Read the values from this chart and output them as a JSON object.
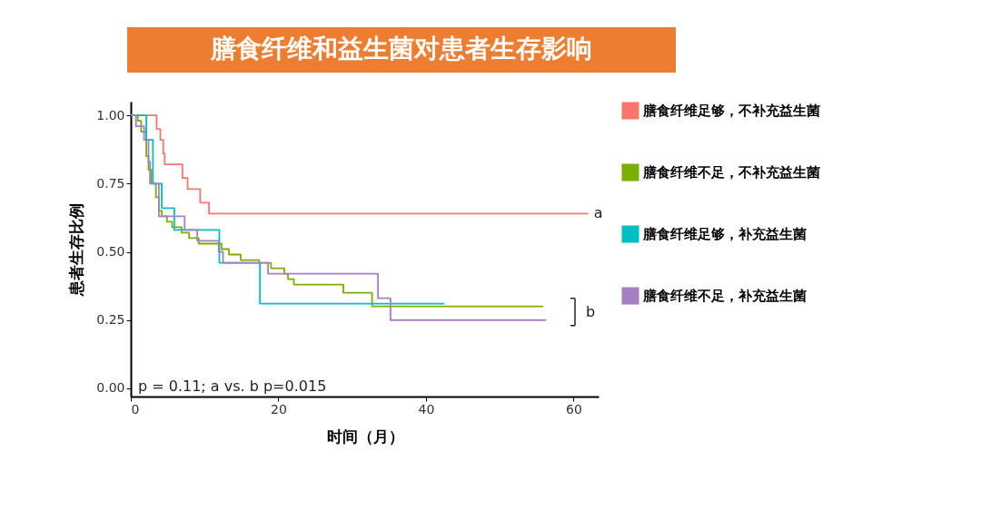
{
  "chart_data": {
    "type": "step",
    "title": "膳食纤维和益生菌对患者生存影响",
    "xlabel": "时间（月）",
    "ylabel": "患者生存比例",
    "xlim": [
      0,
      63.4
    ],
    "ylim": [
      -0.03,
      1.05
    ],
    "xticks": [
      0,
      20,
      40,
      60
    ],
    "yticks": [
      {
        "value": 0,
        "label": "0.00"
      },
      {
        "value": 0.25,
        "label": "0.25"
      },
      {
        "value": 0.5,
        "label": "0.50"
      },
      {
        "value": 0.75,
        "label": "0.75"
      },
      {
        "value": 1,
        "label": "1.00"
      }
    ],
    "legend": "right",
    "grid": false,
    "line_style": "solid",
    "series": [
      {
        "name": "膳食纤维足够，不补充益生菌",
        "color": "#f8766d",
        "x": [
          0,
          3.5,
          4.0,
          4.4,
          4.6,
          7.0,
          7.7,
          9.4,
          10.6,
          62
        ],
        "values": [
          1.0,
          0.95,
          0.91,
          0.86,
          0.82,
          0.77,
          0.73,
          0.68,
          0.64,
          0.64
        ]
      },
      {
        "name": "膳食纤维不足，不补充益生菌",
        "color": "#7cae00",
        "x": [
          0,
          0.95,
          1.4,
          2.1,
          2.4,
          2.8,
          3.4,
          3.8,
          4.2,
          4.9,
          5.6,
          6.9,
          7.9,
          9.2,
          12.3,
          13.3,
          14.9,
          17.4,
          19.0,
          20.8,
          21.3,
          22.1,
          28.8,
          32.7,
          55.9
        ],
        "values": [
          1.0,
          0.98,
          0.94,
          0.85,
          0.8,
          0.75,
          0.7,
          0.65,
          0.63,
          0.61,
          0.59,
          0.57,
          0.55,
          0.53,
          0.51,
          0.49,
          0.47,
          0.46,
          0.44,
          0.42,
          0.4,
          0.38,
          0.35,
          0.3,
          0.3
        ]
      },
      {
        "name": "膳食纤维足够，补充益生菌",
        "color": "#00bfc4",
        "x": [
          0,
          2.1,
          3.0,
          4.2,
          5.9,
          12.0,
          17.5,
          42.5
        ],
        "values": [
          1.0,
          0.91,
          0.75,
          0.66,
          0.58,
          0.46,
          0.31,
          0.31
        ]
      },
      {
        "name": "膳食纤维不足，补充益生菌",
        "color": "#a57fc4",
        "x": [
          0,
          0.7,
          1.8,
          2.4,
          2.6,
          3.8,
          7.3,
          9.0,
          11.9,
          12.5,
          18.6,
          33.5,
          35.2,
          56.3
        ],
        "values": [
          1.0,
          0.96,
          0.91,
          0.83,
          0.75,
          0.63,
          0.58,
          0.54,
          0.5,
          0.46,
          0.42,
          0.33,
          0.25,
          0.25
        ]
      }
    ],
    "annotations": [
      "a",
      "b",
      "p = 0.11; a vs. b p=0.015"
    ]
  }
}
